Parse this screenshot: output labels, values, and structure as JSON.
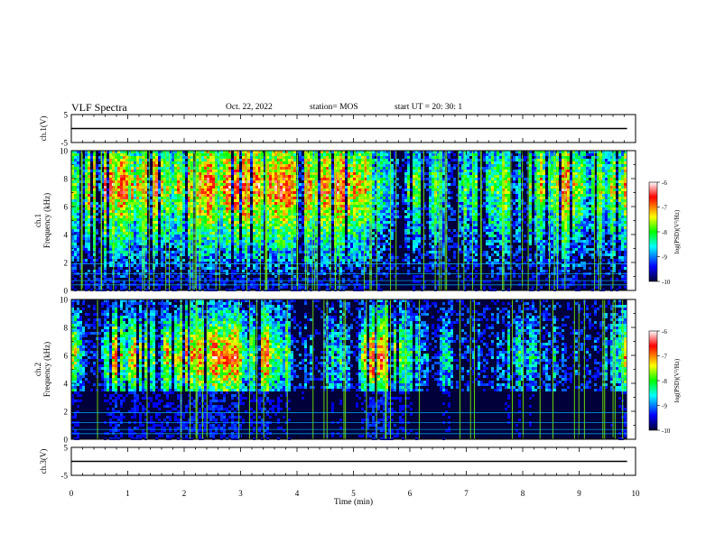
{
  "header": {
    "title": "VLF Spectra",
    "date": "Oct. 22, 2022",
    "station": "station= MOS",
    "start": "start  UT =   20: 30: 1"
  },
  "colors": {
    "colormap": [
      "#000033",
      "#0000ff",
      "#00ffff",
      "#00ff00",
      "#ffff00",
      "#ff0000",
      "#ffffff"
    ],
    "trace": "#000000",
    "spike": "#7cfc00"
  },
  "chart_data": [
    {
      "type": "line",
      "panel": "ch1-voltage",
      "ylabel": "ch.1(V)",
      "yticks": [
        "5",
        "-5"
      ],
      "ylim": [
        -5,
        5
      ],
      "x": [
        0,
        9.85
      ],
      "y": [
        0,
        0
      ]
    },
    {
      "type": "heatmap",
      "panel": "ch1-spectrogram",
      "ylabel": "ch.1\nFrequency (kHz)",
      "ylim": [
        0,
        10
      ],
      "yticks": [
        "0",
        "2",
        "4",
        "6",
        "8",
        "10"
      ],
      "xlim": [
        0,
        10
      ],
      "data_extent_min": 9.85,
      "colorbar": {
        "label": "log(PSD)(V²/Hz)",
        "ticks": [
          "-6",
          "-7",
          "-8",
          "-9",
          "-10"
        ],
        "range": [
          -10,
          -6
        ]
      },
      "description_levels": {
        "band_low_kHz": 1,
        "band_high_kHz": 10,
        "peak_kHz": 7.5,
        "peak_log_psd": -7,
        "background_log_psd": -10
      }
    },
    {
      "type": "heatmap",
      "panel": "ch2-spectrogram",
      "ylabel": "ch.2\nFrequency (kHz)",
      "ylim": [
        0,
        10
      ],
      "yticks": [
        "0",
        "2",
        "4",
        "6",
        "8",
        "10"
      ],
      "xlim": [
        0,
        10
      ],
      "data_extent_min": 9.85,
      "colorbar": {
        "label": "log(PSD)(V²/Hz)",
        "ticks": [
          "-6",
          "-7",
          "-8",
          "-9",
          "-10"
        ],
        "range": [
          -10,
          -6
        ]
      },
      "description_levels": {
        "band_low_kHz": 3.5,
        "band_high_kHz": 10,
        "peak_kHz": 6,
        "peak_log_psd": -7,
        "background_log_psd": -10
      }
    },
    {
      "type": "line",
      "panel": "ch3-voltage",
      "ylabel": "ch.3(V)",
      "yticks": [
        "5",
        "-5"
      ],
      "ylim": [
        -5,
        5
      ],
      "x": [
        0,
        9.85
      ],
      "y": [
        0,
        0
      ]
    }
  ],
  "xaxis": {
    "label": "Time (min)",
    "ticks": [
      "0",
      "1",
      "2",
      "3",
      "4",
      "5",
      "6",
      "7",
      "8",
      "9",
      "10"
    ]
  }
}
